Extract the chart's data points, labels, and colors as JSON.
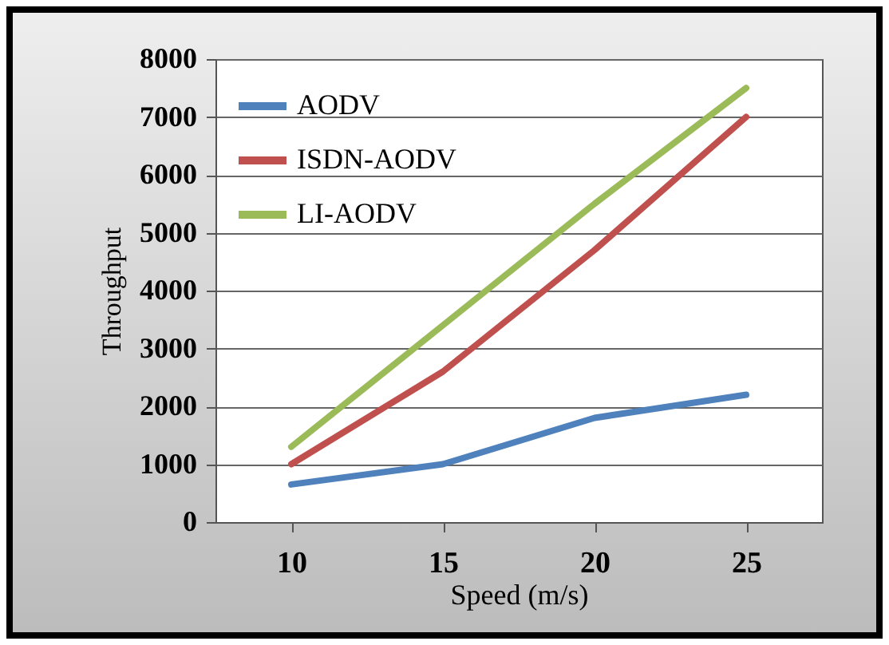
{
  "chart_data": {
    "type": "line",
    "xlabel": "Speed (m/s)",
    "ylabel": "Throughput",
    "categories": [
      "10",
      "15",
      "20",
      "25"
    ],
    "series": [
      {
        "name": "AODV",
        "color": "#4f81bd",
        "values": [
          650,
          1000,
          1800,
          2200
        ]
      },
      {
        "name": "ISDN-AODV",
        "color": "#c0504d",
        "values": [
          1000,
          2600,
          4700,
          7000
        ]
      },
      {
        "name": "LI-AODV",
        "color": "#9bbb59",
        "values": [
          1300,
          3400,
          5500,
          7500
        ]
      }
    ],
    "ylim": [
      0,
      8000
    ],
    "yticks": [
      0,
      1000,
      2000,
      3000,
      4000,
      5000,
      6000,
      7000,
      8000
    ],
    "grid": "y",
    "legend": "top left",
    "marker": "none",
    "line_style": "solid"
  }
}
